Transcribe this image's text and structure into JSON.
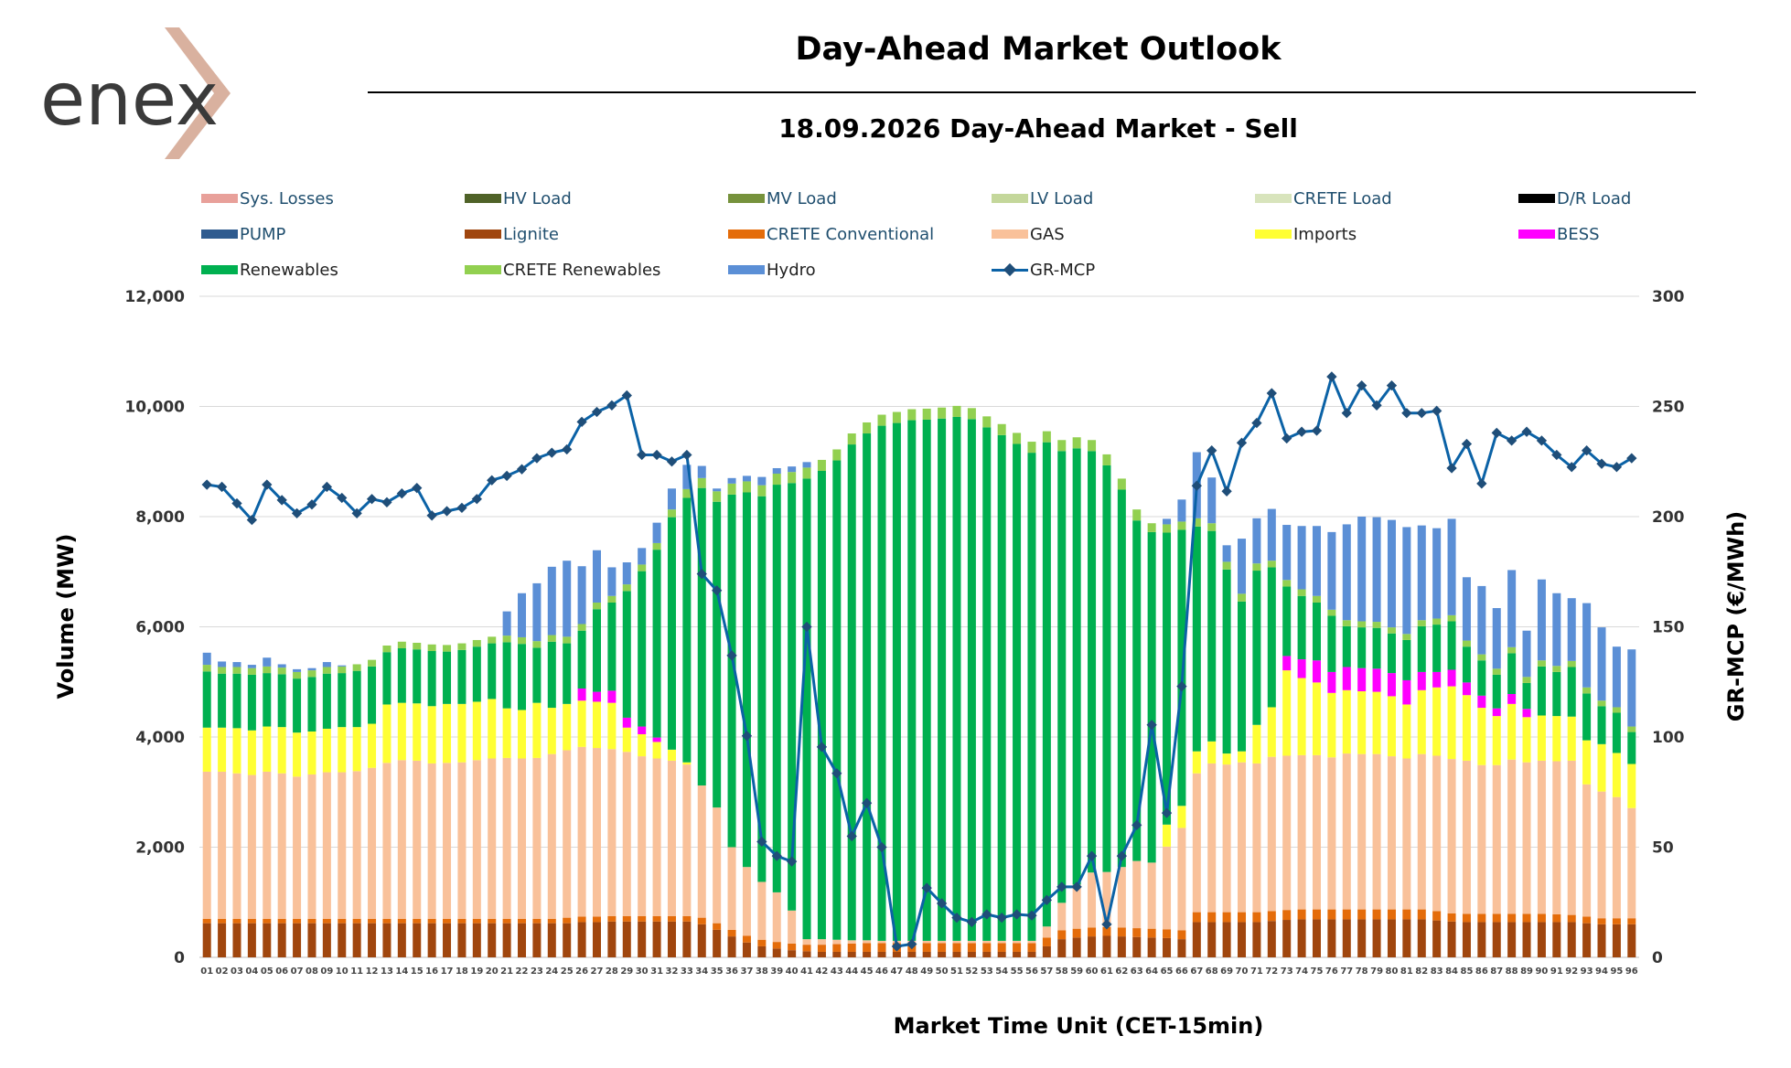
{
  "logo": {
    "text": "enex"
  },
  "title": "Day-Ahead Market Outlook",
  "subtitle": "18.09.2026  Day-Ahead Market - Sell",
  "colors": {
    "Sys. Losses": "#e8a09a",
    "HV Load": "#4f6228",
    "MV Load": "#76923c",
    "LV Load": "#c4d79b",
    "CRETE Load": "#d8e4bc",
    "D/R Load": "#000000",
    "PUMP": "#2f5b8f",
    "Lignite": "#a0460e",
    "CRETE Conventional": "#e46c0a",
    "GAS": "#f9c19a",
    "Imports": "#ffff33",
    "BESS": "#ff00ff",
    "Renewables": "#00b050",
    "CRETE Renewables": "#92d050",
    "Hydro": "#5b8fd6",
    "GR-MCP": "#0b62a6"
  },
  "legend": [
    {
      "label": "Sys. Losses",
      "kind": "bar"
    },
    {
      "label": "HV Load",
      "kind": "bar"
    },
    {
      "label": "MV Load",
      "kind": "bar"
    },
    {
      "label": "LV Load",
      "kind": "bar"
    },
    {
      "label": "CRETE Load",
      "kind": "bar"
    },
    {
      "label": "D/R Load",
      "kind": "bar"
    },
    {
      "label": "PUMP",
      "kind": "bar"
    },
    {
      "label": "Lignite",
      "kind": "bar"
    },
    {
      "label": "CRETE Conventional",
      "kind": "bar"
    },
    {
      "label": "GAS",
      "kind": "bar"
    },
    {
      "label": "Imports",
      "kind": "bar"
    },
    {
      "label": "BESS",
      "kind": "bar"
    },
    {
      "label": "Renewables",
      "kind": "bar"
    },
    {
      "label": "CRETE Renewables",
      "kind": "bar"
    },
    {
      "label": "Hydro",
      "kind": "bar"
    },
    {
      "label": "GR-MCP",
      "kind": "line"
    }
  ],
  "chart_data": {
    "type": "bar",
    "stacked": true,
    "xlabel": "Market Time Unit (CET-15min)",
    "ylabel_left": "Volume (MW)",
    "ylabel_right": "GR-MCP (€/MWh)",
    "ylim_left": [
      0,
      12000
    ],
    "ylim_right": [
      0,
      300
    ],
    "yticks_left": [
      "0",
      "2,000",
      "4,000",
      "6,000",
      "8,000",
      "10,000",
      "12,000"
    ],
    "yticks_right": [
      "0",
      "50",
      "100",
      "150",
      "200",
      "250",
      "300"
    ],
    "grid": "horizontal",
    "legend_position": "top",
    "categories": [
      "01",
      "02",
      "03",
      "04",
      "05",
      "06",
      "07",
      "08",
      "09",
      "10",
      "11",
      "12",
      "13",
      "14",
      "15",
      "16",
      "17",
      "18",
      "19",
      "20",
      "21",
      "22",
      "23",
      "24",
      "25",
      "26",
      "27",
      "28",
      "29",
      "30",
      "31",
      "32",
      "33",
      "34",
      "35",
      "36",
      "37",
      "38",
      "39",
      "40",
      "41",
      "42",
      "43",
      "44",
      "45",
      "46",
      "47",
      "48",
      "49",
      "50",
      "51",
      "52",
      "53",
      "54",
      "55",
      "56",
      "57",
      "58",
      "59",
      "60",
      "61",
      "62",
      "63",
      "64",
      "65",
      "66",
      "67",
      "68",
      "69",
      "70",
      "71",
      "72",
      "73",
      "74",
      "75",
      "76",
      "77",
      "78",
      "79",
      "80",
      "81",
      "82",
      "83",
      "84",
      "85",
      "86",
      "87",
      "88",
      "89",
      "90",
      "91",
      "92",
      "93",
      "94",
      "95",
      "96"
    ],
    "series": [
      {
        "name": "Lignite",
        "values": [
          620,
          620,
          620,
          620,
          620,
          620,
          620,
          620,
          620,
          620,
          620,
          620,
          620,
          620,
          620,
          620,
          620,
          620,
          620,
          620,
          620,
          620,
          620,
          620,
          620,
          640,
          640,
          650,
          650,
          650,
          650,
          650,
          650,
          600,
          500,
          380,
          270,
          200,
          160,
          130,
          110,
          100,
          100,
          100,
          100,
          100,
          100,
          100,
          100,
          100,
          100,
          100,
          100,
          100,
          100,
          100,
          200,
          330,
          360,
          380,
          390,
          380,
          370,
          360,
          350,
          330,
          640,
          640,
          640,
          640,
          640,
          660,
          680,
          690,
          690,
          690,
          690,
          690,
          690,
          690,
          690,
          690,
          670,
          650,
          640,
          640,
          640,
          640,
          640,
          640,
          640,
          640,
          620,
          600,
          600,
          600
        ]
      },
      {
        "name": "CRETE Conventional",
        "values": [
          80,
          80,
          80,
          80,
          80,
          80,
          80,
          80,
          80,
          80,
          80,
          80,
          80,
          80,
          80,
          80,
          80,
          80,
          80,
          80,
          80,
          80,
          80,
          80,
          100,
          100,
          100,
          100,
          100,
          100,
          100,
          100,
          100,
          120,
          120,
          120,
          120,
          120,
          120,
          120,
          120,
          130,
          140,
          150,
          160,
          160,
          160,
          160,
          160,
          160,
          160,
          160,
          160,
          160,
          160,
          160,
          160,
          160,
          160,
          160,
          160,
          160,
          160,
          160,
          160,
          160,
          180,
          180,
          180,
          180,
          180,
          180,
          180,
          180,
          180,
          180,
          180,
          180,
          180,
          180,
          180,
          180,
          170,
          150,
          150,
          150,
          150,
          150,
          150,
          150,
          140,
          130,
          120,
          110,
          110,
          110
        ]
      },
      {
        "name": "GAS",
        "values": [
          2670,
          2670,
          2640,
          2610,
          2670,
          2640,
          2580,
          2620,
          2660,
          2660,
          2680,
          2740,
          2830,
          2880,
          2870,
          2820,
          2830,
          2840,
          2880,
          2910,
          2920,
          2910,
          2920,
          2990,
          3040,
          3080,
          3060,
          3030,
          2980,
          2900,
          2860,
          2820,
          2750,
          2400,
          2100,
          1500,
          1250,
          1050,
          900,
          600,
          100,
          100,
          80,
          60,
          50,
          40,
          40,
          40,
          40,
          40,
          40,
          40,
          40,
          40,
          40,
          40,
          200,
          500,
          800,
          1000,
          1000,
          1100,
          1220,
          1200,
          1500,
          1860,
          2520,
          2700,
          2680,
          2720,
          2700,
          2800,
          2800,
          2800,
          2800,
          2760,
          2830,
          2820,
          2820,
          2780,
          2740,
          2820,
          2820,
          2800,
          2780,
          2700,
          2700,
          2800,
          2750,
          2780,
          2780,
          2800,
          2400,
          2300,
          2200,
          2000
        ]
      },
      {
        "name": "Imports",
        "values": [
          800,
          800,
          820,
          810,
          820,
          840,
          800,
          780,
          790,
          820,
          800,
          800,
          1060,
          1040,
          1040,
          1040,
          1070,
          1060,
          1060,
          1080,
          900,
          880,
          1000,
          840,
          840,
          840,
          840,
          840,
          440,
          400,
          300,
          200,
          40,
          0,
          0,
          0,
          0,
          0,
          0,
          0,
          0,
          0,
          0,
          0,
          0,
          0,
          0,
          0,
          0,
          0,
          0,
          0,
          0,
          0,
          0,
          0,
          0,
          0,
          0,
          0,
          0,
          0,
          0,
          0,
          400,
          400,
          400,
          400,
          200,
          200,
          700,
          900,
          1550,
          1400,
          1320,
          1170,
          1150,
          1140,
          1130,
          1090,
          980,
          1160,
          1240,
          1320,
          1190,
          1040,
          890,
          1010,
          820,
          820,
          820,
          800,
          800,
          860,
          800,
          800
        ]
      },
      {
        "name": "BESS",
        "values": [
          0,
          0,
          0,
          0,
          0,
          0,
          0,
          0,
          0,
          0,
          0,
          0,
          0,
          0,
          0,
          0,
          0,
          0,
          0,
          0,
          0,
          0,
          0,
          0,
          0,
          220,
          180,
          220,
          180,
          140,
          80,
          0,
          0,
          0,
          0,
          0,
          0,
          0,
          0,
          0,
          0,
          0,
          0,
          0,
          0,
          0,
          0,
          0,
          0,
          0,
          0,
          0,
          0,
          0,
          0,
          0,
          0,
          0,
          0,
          0,
          0,
          0,
          0,
          0,
          0,
          0,
          0,
          0,
          0,
          0,
          0,
          0,
          260,
          340,
          400,
          380,
          420,
          420,
          420,
          420,
          440,
          330,
          280,
          300,
          230,
          220,
          140,
          180,
          150,
          0,
          0,
          0,
          0,
          0,
          0,
          0
        ]
      },
      {
        "name": "Renewables",
        "values": [
          1020,
          980,
          990,
          1010,
          970,
          960,
          980,
          990,
          1000,
          980,
          1020,
          1040,
          950,
          990,
          980,
          1000,
          950,
          980,
          1000,
          1010,
          1200,
          1200,
          1000,
          1200,
          1100,
          1050,
          1500,
          1600,
          2300,
          2820,
          3410,
          4220,
          4800,
          5400,
          5550,
          6400,
          6800,
          7000,
          7400,
          7760,
          8360,
          8500,
          8700,
          9000,
          9200,
          9350,
          9400,
          9450,
          9460,
          9480,
          9510,
          9470,
          9320,
          9180,
          9020,
          8860,
          8790,
          8200,
          7920,
          7650,
          7380,
          6850,
          6180,
          6000,
          5300,
          5010,
          4080,
          3820,
          3340,
          2720,
          2800,
          2540,
          1260,
          1150,
          1050,
          1020,
          740,
          740,
          740,
          720,
          730,
          830,
          860,
          880,
          650,
          640,
          610,
          740,
          470,
          890,
          800,
          900,
          850,
          690,
          730,
          580
        ]
      },
      {
        "name": "CRETE Renewables",
        "values": [
          120,
          120,
          120,
          120,
          120,
          120,
          120,
          120,
          120,
          120,
          120,
          120,
          120,
          120,
          120,
          120,
          120,
          120,
          120,
          120,
          120,
          120,
          120,
          120,
          120,
          120,
          120,
          120,
          120,
          120,
          120,
          140,
          160,
          180,
          190,
          200,
          200,
          200,
          200,
          200,
          200,
          200,
          200,
          200,
          200,
          200,
          200,
          200,
          200,
          200,
          200,
          200,
          200,
          200,
          200,
          200,
          200,
          200,
          200,
          200,
          200,
          200,
          200,
          160,
          150,
          150,
          150,
          140,
          140,
          140,
          130,
          120,
          120,
          120,
          120,
          110,
          110,
          110,
          110,
          110,
          110,
          110,
          110,
          110,
          110,
          110,
          110,
          110,
          110,
          110,
          110,
          110,
          110,
          100,
          100,
          100
        ]
      },
      {
        "name": "Hydro",
        "values": [
          220,
          100,
          90,
          60,
          160,
          60,
          50,
          40,
          90,
          20,
          0,
          0,
          0,
          0,
          0,
          0,
          0,
          0,
          0,
          0,
          440,
          800,
          1050,
          1240,
          1380,
          1050,
          950,
          520,
          400,
          300,
          370,
          380,
          440,
          220,
          50,
          100,
          100,
          150,
          100,
          100,
          100,
          0,
          0,
          0,
          0,
          0,
          0,
          0,
          0,
          0,
          0,
          0,
          0,
          0,
          0,
          0,
          0,
          0,
          0,
          0,
          0,
          0,
          0,
          0,
          100,
          400,
          1200,
          830,
          300,
          1000,
          820,
          940,
          1000,
          1150,
          1270,
          1410,
          1740,
          1900,
          1900,
          1950,
          1940,
          1720,
          1640,
          1750,
          1150,
          1240,
          1100,
          1400,
          840,
          1470,
          1320,
          1140,
          1530,
          1330,
          1100,
          1400
        ]
      },
      {
        "name": "GR-MCP",
        "values": [
          214.5,
          213.5,
          206,
          198.5,
          214.5,
          207.5,
          201.5,
          205.5,
          213.5,
          208.5,
          201.5,
          208,
          206.5,
          210.5,
          213,
          200.5,
          202.5,
          204,
          208,
          216.5,
          218.5,
          221.5,
          226.5,
          229,
          230.5,
          243,
          247.5,
          250.5,
          255,
          228,
          228,
          225,
          228,
          174,
          166.5,
          137,
          100.5,
          52.5,
          46,
          43.5,
          150,
          95.5,
          83.5,
          55,
          70,
          50,
          5,
          6,
          31.5,
          24.5,
          18,
          16,
          19.5,
          18,
          19.5,
          19,
          26,
          32,
          32,
          46,
          15,
          46,
          60,
          105.5,
          65.5,
          123,
          214,
          230,
          211.5,
          233.5,
          242.5,
          256,
          235.5,
          238.5,
          239,
          263.5,
          247,
          259.5,
          250.5,
          259.5,
          247,
          247,
          248,
          222,
          233,
          215,
          238,
          234.5,
          238.5,
          234.5,
          228,
          222.5,
          230,
          224,
          222.5,
          226.5
        ]
      }
    ]
  }
}
